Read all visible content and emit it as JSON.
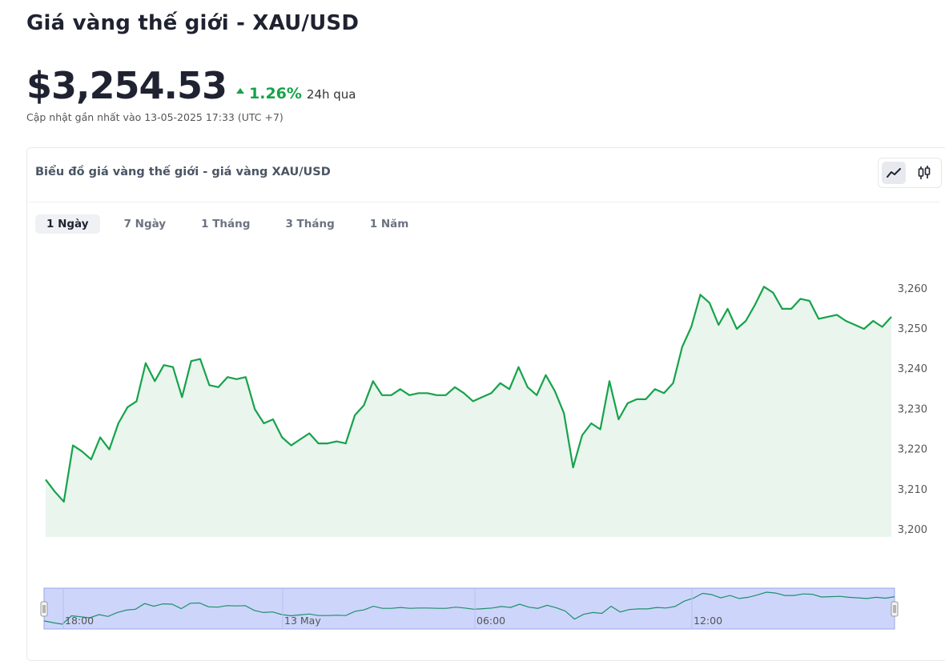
{
  "header": {
    "title": "Giá vàng thế giới - XAU/USD",
    "price": "$3,254.53",
    "change": "1.26%",
    "change_period": "24h qua",
    "updated": "Cập nhật gần nhất vào 13-05-2025 17:33 (UTC +7)"
  },
  "chart_card": {
    "title": "Biểu đồ giá vàng thế giới - giá vàng XAU/USD",
    "chart_types": [
      {
        "icon": "line-chart-icon",
        "active": true
      },
      {
        "icon": "candlestick-icon",
        "active": false
      }
    ],
    "ranges": [
      {
        "label": "1 Ngày",
        "active": true
      },
      {
        "label": "7 Ngày",
        "active": false
      },
      {
        "label": "1 Tháng",
        "active": false
      },
      {
        "label": "3 Tháng",
        "active": false
      },
      {
        "label": "1 Năm",
        "active": false
      }
    ]
  },
  "colors": {
    "line": "#16a34a",
    "area": "#eaf5ee",
    "navigator_bg": "#cdd5fb",
    "navigator_line": "#1f8f6a"
  },
  "chart_data": {
    "type": "area",
    "title": "",
    "xlabel": "",
    "ylabel": "",
    "ylim": [
      3200,
      3260
    ],
    "yticks": [
      3200,
      3210,
      3220,
      3230,
      3240,
      3250,
      3260
    ],
    "ytick_labels": [
      "3,200",
      "3,210",
      "3,220",
      "3,230",
      "3,240",
      "3,250",
      "3,260"
    ],
    "grid": false,
    "series": [
      {
        "values": [
          3212.5,
          3209.5,
          3207,
          3221,
          3219.5,
          3217.5,
          3223,
          3220,
          3226.5,
          3230.5,
          3232,
          3241.5,
          3237,
          3241,
          3240.5,
          3233,
          3242,
          3242.5,
          3236,
          3235.5,
          3238,
          3237.5,
          3238,
          3230,
          3226.5,
          3227.5,
          3223,
          3221,
          3222.5,
          3224,
          3221.5,
          3221.5,
          3222,
          3221.5,
          3228.5,
          3231,
          3237,
          3233.5,
          3233.5,
          3235,
          3233.5,
          3234,
          3234,
          3233.5,
          3233.5,
          3235.5,
          3234,
          3232,
          3233,
          3234,
          3236.5,
          3235,
          3240.5,
          3235.5,
          3233.5,
          3238.5,
          3234.5,
          3229,
          3215.5,
          3223.5,
          3226.5,
          3225,
          3237,
          3227.5,
          3231.5,
          3232.5,
          3232.5,
          3235,
          3234,
          3236.5,
          3245.5,
          3250.5,
          3258.5,
          3256.5,
          3251,
          3255,
          3250,
          3252,
          3256,
          3260.5,
          3259,
          3255,
          3255,
          3257.5,
          3257,
          3252.5,
          3253,
          3253.5,
          3252,
          3251,
          3250,
          3252,
          3250.5,
          3253
        ]
      }
    ],
    "navigator": {
      "labels": [
        "18:00",
        "13 May",
        "06:00",
        "12:00"
      ]
    }
  }
}
